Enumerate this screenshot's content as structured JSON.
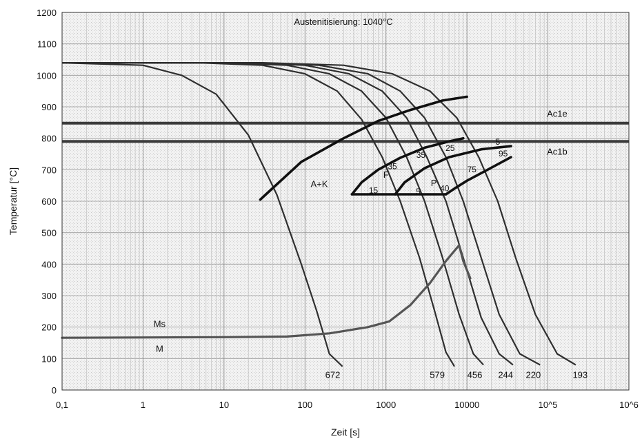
{
  "chart_data": {
    "type": "line",
    "title": "Austenitisierung: 1040°C",
    "xlabel": "Zeit [s]",
    "ylabel": "Temperatur [°C]",
    "x_scale": "log",
    "xlim": [
      0.1,
      1000000
    ],
    "ylim": [
      0,
      1200
    ],
    "grid": true,
    "x_ticks": [
      "0,1",
      "1",
      "10",
      "100",
      "1000",
      "10000",
      "10^5",
      "10^6"
    ],
    "y_ticks": [
      "0",
      "100",
      "200",
      "300",
      "400",
      "500",
      "600",
      "700",
      "800",
      "900",
      "1000",
      "1100",
      "1200"
    ],
    "hlines": [
      {
        "name": "Ac1e",
        "y": 848
      },
      {
        "name": "Ac1b",
        "y": 790
      }
    ],
    "cooling_curves": [
      {
        "hardness": "672",
        "points": [
          [
            0.1,
            1040
          ],
          [
            1,
            1032
          ],
          [
            3,
            1000
          ],
          [
            8,
            940
          ],
          [
            20,
            810
          ],
          [
            45,
            620
          ],
          [
            90,
            400
          ],
          [
            140,
            250
          ],
          [
            200,
            115
          ],
          [
            290,
            75
          ]
        ]
      },
      {
        "hardness": "579",
        "points": [
          [
            0.1,
            1040
          ],
          [
            5,
            1040
          ],
          [
            30,
            1032
          ],
          [
            100,
            1005
          ],
          [
            250,
            950
          ],
          [
            500,
            860
          ],
          [
            900,
            740
          ],
          [
            1500,
            600
          ],
          [
            2600,
            420
          ],
          [
            4000,
            250
          ],
          [
            5500,
            120
          ],
          [
            7000,
            75
          ]
        ]
      },
      {
        "hardness": "456",
        "points": [
          [
            0.1,
            1040
          ],
          [
            10,
            1040
          ],
          [
            60,
            1032
          ],
          [
            200,
            1005
          ],
          [
            500,
            950
          ],
          [
            1000,
            865
          ],
          [
            1800,
            740
          ],
          [
            3000,
            600
          ],
          [
            5000,
            420
          ],
          [
            8000,
            240
          ],
          [
            12000,
            115
          ],
          [
            16000,
            80
          ]
        ]
      },
      {
        "hardness": "244",
        "points": [
          [
            0.1,
            1040
          ],
          [
            15,
            1040
          ],
          [
            100,
            1032
          ],
          [
            350,
            1005
          ],
          [
            900,
            950
          ],
          [
            1800,
            865
          ],
          [
            3200,
            740
          ],
          [
            5500,
            600
          ],
          [
            9000,
            420
          ],
          [
            15000,
            230
          ],
          [
            25000,
            115
          ],
          [
            37000,
            80
          ]
        ]
      },
      {
        "hardness": "220",
        "points": [
          [
            0.1,
            1040
          ],
          [
            20,
            1040
          ],
          [
            150,
            1032
          ],
          [
            600,
            1005
          ],
          [
            1500,
            950
          ],
          [
            3000,
            865
          ],
          [
            5500,
            740
          ],
          [
            9000,
            600
          ],
          [
            15000,
            420
          ],
          [
            25000,
            240
          ],
          [
            45000,
            115
          ],
          [
            80000,
            80
          ]
        ]
      },
      {
        "hardness": "193",
        "points": [
          [
            0.1,
            1040
          ],
          [
            30,
            1040
          ],
          [
            300,
            1032
          ],
          [
            1200,
            1005
          ],
          [
            3500,
            950
          ],
          [
            7500,
            865
          ],
          [
            14000,
            740
          ],
          [
            24000,
            600
          ],
          [
            40000,
            420
          ],
          [
            70000,
            240
          ],
          [
            130000,
            115
          ],
          [
            220000,
            80
          ]
        ]
      }
    ],
    "transformation_lines": [
      {
        "name": "A+K",
        "label": "A+K",
        "points": [
          [
            28,
            605
          ],
          [
            90,
            725
          ],
          [
            300,
            800
          ],
          [
            800,
            855
          ],
          [
            2000,
            890
          ],
          [
            5000,
            920
          ],
          [
            10000,
            932
          ]
        ]
      },
      {
        "name": "F-start",
        "label": "F",
        "points": [
          [
            380,
            622
          ],
          [
            500,
            660
          ],
          [
            800,
            700
          ],
          [
            1500,
            738
          ],
          [
            3000,
            770
          ],
          [
            6000,
            790
          ],
          [
            9000,
            800
          ]
        ]
      },
      {
        "name": "P-start",
        "label": "P",
        "points": [
          [
            1300,
            622
          ],
          [
            1700,
            660
          ],
          [
            3000,
            705
          ],
          [
            6000,
            740
          ],
          [
            15000,
            765
          ],
          [
            35000,
            775
          ]
        ]
      },
      {
        "name": "P-end",
        "points": [
          [
            5500,
            622
          ],
          [
            7000,
            640
          ],
          [
            10000,
            665
          ],
          [
            18000,
            700
          ],
          [
            35000,
            740
          ]
        ]
      },
      {
        "name": "base",
        "points": [
          [
            380,
            622
          ],
          [
            5500,
            622
          ]
        ]
      },
      {
        "name": "Ms",
        "label": "Ms",
        "points": [
          [
            0.1,
            166
          ],
          [
            10,
            168
          ],
          [
            60,
            170
          ],
          [
            200,
            180
          ],
          [
            600,
            200
          ],
          [
            1100,
            218
          ],
          [
            2000,
            270
          ],
          [
            3500,
            340
          ],
          [
            5500,
            410
          ],
          [
            8000,
            460
          ],
          [
            9000,
            410
          ],
          [
            11000,
            355
          ]
        ]
      }
    ],
    "curve_annotations": [
      {
        "text": "15",
        "x": 700,
        "y": 625
      },
      {
        "text": "35",
        "x": 1200,
        "y": 702
      },
      {
        "text": "35",
        "x": 2700,
        "y": 738
      },
      {
        "text": "25",
        "x": 6200,
        "y": 760
      },
      {
        "text": "5",
        "x": 2500,
        "y": 622
      },
      {
        "text": "40",
        "x": 5300,
        "y": 632
      },
      {
        "text": "75",
        "x": 11500,
        "y": 692
      },
      {
        "text": "95",
        "x": 28000,
        "y": 742
      },
      {
        "text": "5",
        "x": 24000,
        "y": 780
      }
    ],
    "region_labels": [
      {
        "text": "A+K",
        "x": 150,
        "y": 645
      },
      {
        "text": "F",
        "x": 1000,
        "y": 675
      },
      {
        "text": "P",
        "x": 3900,
        "y": 648
      },
      {
        "text": "Ms",
        "x": 1.6,
        "y": 200
      },
      {
        "text": "M",
        "x": 1.6,
        "y": 122
      }
    ],
    "hline_labels": [
      {
        "text": "Ac1e",
        "x": 130000,
        "y": 868
      },
      {
        "text": "Ac1b",
        "x": 130000,
        "y": 748
      }
    ],
    "hardness_labels": [
      {
        "text": "672",
        "x": 220,
        "y": 38
      },
      {
        "text": "579",
        "x": 4300,
        "y": 38
      },
      {
        "text": "456",
        "x": 12500,
        "y": 38
      },
      {
        "text": "244",
        "x": 30000,
        "y": 38
      },
      {
        "text": "220",
        "x": 66000,
        "y": 38
      },
      {
        "text": "193",
        "x": 250000,
        "y": 38
      }
    ]
  }
}
